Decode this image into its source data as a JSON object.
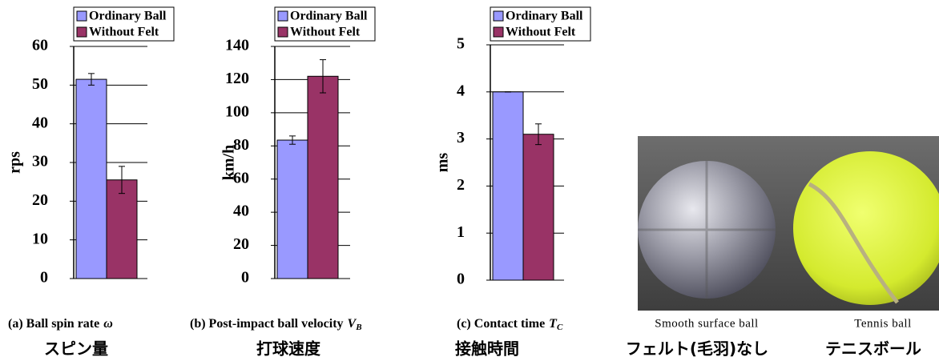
{
  "chart_data": [
    {
      "type": "bar",
      "y_label": "rps",
      "ylim": [
        0,
        60
      ],
      "yticks": [
        0,
        10,
        20,
        30,
        40,
        50,
        60
      ],
      "grid": true,
      "series": [
        {
          "name": "Ordinary Ball",
          "color": "#9999ff",
          "values": [
            51.5
          ],
          "errors": [
            1.5
          ]
        },
        {
          "name": "Without Felt",
          "color": "#993366",
          "values": [
            25.5
          ],
          "errors": [
            3.5
          ]
        }
      ],
      "caption": "(a) Ball spin rate",
      "caption_symbol": "ω",
      "caption_jp": "スピン量"
    },
    {
      "type": "bar",
      "y_label": "km/h",
      "ylim": [
        0,
        140
      ],
      "yticks": [
        0,
        20,
        40,
        60,
        80,
        100,
        120,
        140
      ],
      "grid": true,
      "series": [
        {
          "name": "Ordinary Ball",
          "color": "#9999ff",
          "values": [
            83.5
          ],
          "errors": [
            2.5
          ]
        },
        {
          "name": "Without Felt",
          "color": "#993366",
          "values": [
            122
          ],
          "errors": [
            10
          ]
        }
      ],
      "caption": "(b) Post-impact ball velocity",
      "caption_symbol": "V",
      "caption_sub": "B",
      "caption_jp": "打球速度"
    },
    {
      "type": "bar",
      "y_label": "ms",
      "ylim": [
        0,
        5
      ],
      "yticks": [
        0,
        1,
        2,
        3,
        4,
        5
      ],
      "grid": true,
      "series": [
        {
          "name": "Ordinary Ball",
          "color": "#9999ff",
          "values": [
            4.0
          ],
          "errors": [
            0
          ]
        },
        {
          "name": "Without Felt",
          "color": "#993366",
          "values": [
            3.1
          ],
          "errors": [
            0.22
          ]
        }
      ],
      "caption": "(c) Contact time",
      "caption_symbol": "T",
      "caption_sub": "C",
      "caption_jp": "接触時間"
    }
  ],
  "photo": {
    "left_caption": "Smooth surface ball",
    "right_caption": "Tennis ball",
    "left_caption_jp": "フェルト(毛羽)なし",
    "right_caption_jp": "テニスボール"
  }
}
